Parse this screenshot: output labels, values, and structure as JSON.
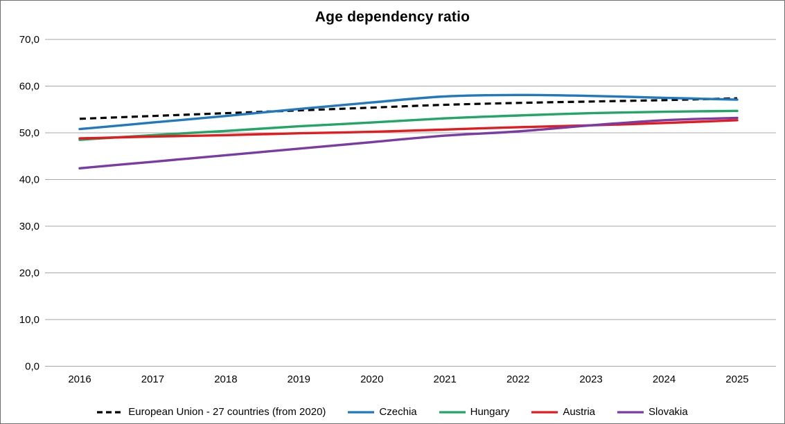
{
  "chart_data": {
    "type": "line",
    "title": "Age dependency ratio",
    "x_labels": [
      "2016",
      "2017",
      "2018",
      "2019",
      "2020",
      "2021",
      "2022",
      "2023",
      "2024",
      "2025"
    ],
    "ylim": [
      0,
      70
    ],
    "ytick_step": 10,
    "ytick_labels": [
      "0,0",
      "10,0",
      "20,0",
      "30,0",
      "40,0",
      "50,0",
      "60,0",
      "70,0"
    ],
    "grid": true,
    "gridline_color": "#a6a6a6",
    "legend_position": "bottom",
    "decimal_separator": ",",
    "series": [
      {
        "name": "European Union - 27 countries (from 2020)",
        "color": "#000000",
        "dashed": true,
        "values": [
          53.0,
          53.6,
          54.2,
          54.8,
          55.4,
          56.0,
          56.4,
          56.7,
          57.0,
          57.4
        ]
      },
      {
        "name": "Czechia",
        "color": "#2079BF",
        "dashed": false,
        "values": [
          50.8,
          52.2,
          53.6,
          55.1,
          56.5,
          57.8,
          58.1,
          57.9,
          57.5,
          57.1
        ]
      },
      {
        "name": "Hungary",
        "color": "#22A566",
        "dashed": false,
        "values": [
          48.5,
          49.5,
          50.4,
          51.4,
          52.2,
          53.1,
          53.7,
          54.2,
          54.5,
          54.7
        ]
      },
      {
        "name": "Austria",
        "color": "#E41B1E",
        "dashed": false,
        "values": [
          48.8,
          49.2,
          49.5,
          49.9,
          50.2,
          50.7,
          51.2,
          51.6,
          52.1,
          52.7
        ]
      },
      {
        "name": "Slovakia",
        "color": "#7A3BA5",
        "dashed": false,
        "values": [
          42.4,
          43.8,
          45.2,
          46.6,
          48.0,
          49.4,
          50.3,
          51.6,
          52.7,
          53.2
        ]
      }
    ]
  }
}
